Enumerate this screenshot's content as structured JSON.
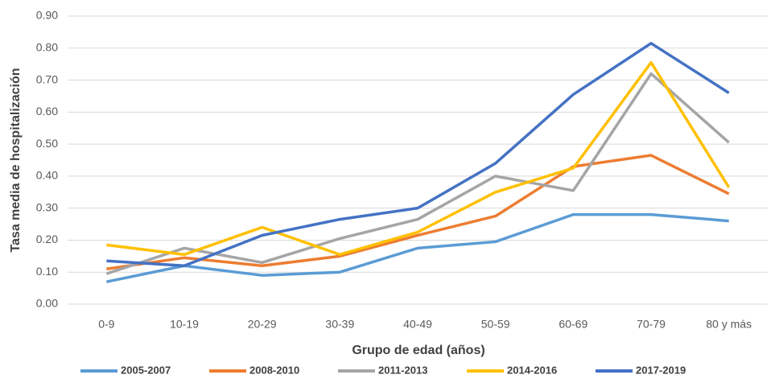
{
  "chart_data": {
    "type": "line",
    "x_label": "Grupo de edad (años)",
    "y_label": "Tasa media de hospitalización",
    "categories": [
      "0-9",
      "10-19",
      "20-29",
      "30-39",
      "40-49",
      "50-59",
      "60-69",
      "70-79",
      "80 y más"
    ],
    "series": [
      {
        "name": "2005-2007",
        "color": "#5b9bd5",
        "values": [
          0.07,
          0.12,
          0.09,
          0.1,
          0.175,
          0.195,
          0.28,
          0.28,
          0.26
        ]
      },
      {
        "name": "2008-2010",
        "color": "#ed7d31",
        "values": [
          0.11,
          0.145,
          0.12,
          0.15,
          0.215,
          0.275,
          0.43,
          0.465,
          0.345
        ]
      },
      {
        "name": "2011-2013",
        "color": "#a5a5a5",
        "values": [
          0.095,
          0.175,
          0.13,
          0.205,
          0.265,
          0.4,
          0.355,
          0.72,
          0.505
        ]
      },
      {
        "name": "2014-2016",
        "color": "#ffc000",
        "values": [
          0.185,
          0.155,
          0.24,
          0.155,
          0.225,
          0.35,
          0.425,
          0.755,
          0.365
        ]
      },
      {
        "name": "2017-2019",
        "color": "#4472c4",
        "values": [
          0.135,
          0.12,
          0.215,
          0.265,
          0.3,
          0.44,
          0.655,
          0.815,
          0.66
        ]
      }
    ],
    "ylim": [
      0,
      0.9
    ],
    "yticks": [
      {
        "value": 0,
        "label": "0.00"
      },
      {
        "value": 0.1,
        "label": "0.10"
      },
      {
        "value": 0.2,
        "label": "0.20"
      },
      {
        "value": 0.3,
        "label": "0.30"
      },
      {
        "value": 0.4,
        "label": "0.40"
      },
      {
        "value": 0.5,
        "label": "0.50"
      },
      {
        "value": 0.6,
        "label": "0.60"
      },
      {
        "value": 0.7,
        "label": "0.70"
      },
      {
        "value": 0.8,
        "label": "0.80"
      },
      {
        "value": 0.9,
        "label": "0.90"
      }
    ],
    "grid": true,
    "legend": "bottom"
  }
}
